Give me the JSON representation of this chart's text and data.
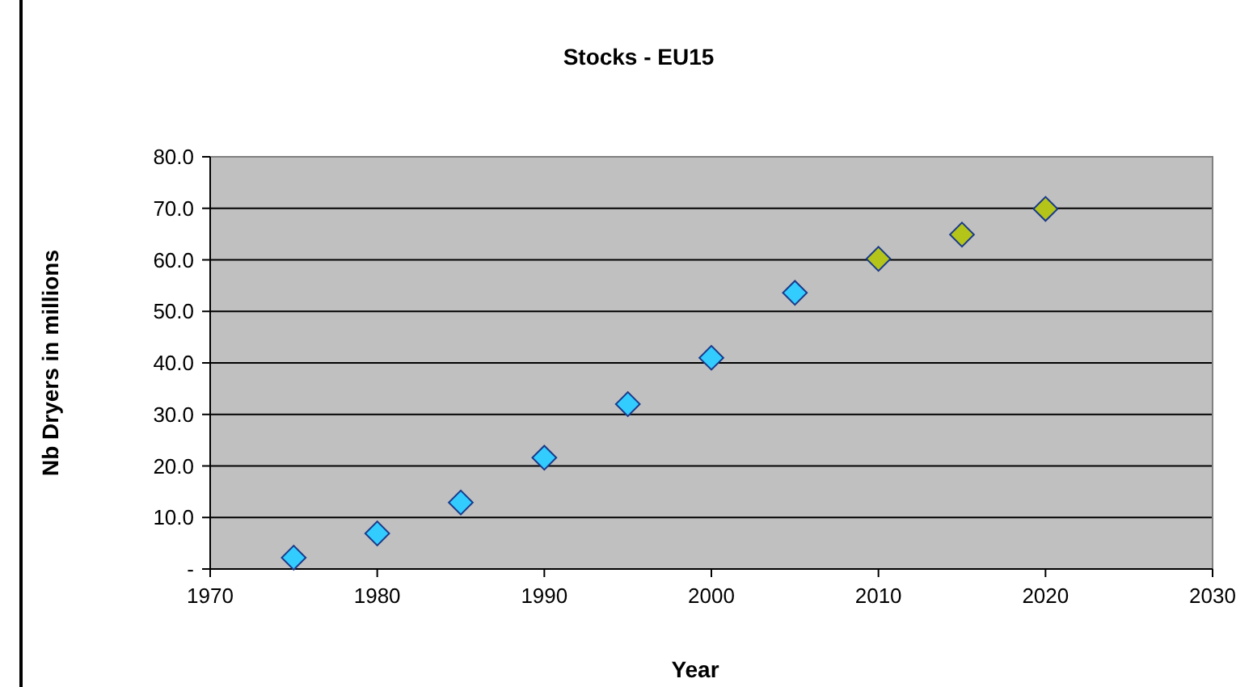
{
  "chart_data": {
    "type": "scatter",
    "title": "Stocks - EU15",
    "xlabel": "Year",
    "ylabel": "Nb Dryers in millions",
    "series": [
      {
        "color": "#33ccff",
        "x": [
          1975,
          1980,
          1985,
          1990,
          1995,
          2000,
          2005
        ],
        "values": [
          2.2,
          6.9,
          12.9,
          21.6,
          32.0,
          41.0,
          53.6
        ]
      },
      {
        "color": "#b5c418",
        "x": [
          2010,
          2015,
          2020
        ],
        "values": [
          60.2,
          64.9,
          69.9
        ]
      }
    ],
    "xlim": [
      1970,
      2030
    ],
    "xticks": [
      1970,
      1980,
      1990,
      2000,
      2010,
      2020,
      2030
    ],
    "ylim": [
      0,
      80
    ],
    "yticks": [
      {
        "value": 0,
        "label": "-"
      },
      {
        "value": 10,
        "label": "10.0"
      },
      {
        "value": 20,
        "label": "20.0"
      },
      {
        "value": 30,
        "label": "30.0"
      },
      {
        "value": 40,
        "label": "40.0"
      },
      {
        "value": 50,
        "label": "50.0"
      },
      {
        "value": 60,
        "label": "60.0"
      },
      {
        "value": 70,
        "label": "70.0"
      },
      {
        "value": 80,
        "label": "80.0"
      }
    ],
    "grid": "y",
    "marker": "diamond"
  }
}
